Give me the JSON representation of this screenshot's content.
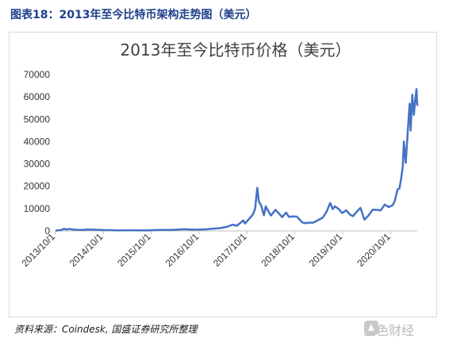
{
  "figure_caption": "图表18：2013年至今比特币架构走势图（美元）",
  "source_note": "资料来源：Coindesk, 国盛证券研究所整理",
  "watermark": {
    "text": "金色财经",
    "icon": "jinse-logo-icon"
  },
  "colors": {
    "series": "#4472c4",
    "caption": "#1f3f8a",
    "frame": "#d9d9d9"
  },
  "chart_data": {
    "type": "line",
    "title": "2013年至今比特币价格（美元）",
    "xlabel": "",
    "ylabel": "",
    "ylim": [
      0,
      70000
    ],
    "yticks": [
      0,
      10000,
      20000,
      30000,
      40000,
      50000,
      60000,
      70000
    ],
    "ytick_labels": [
      "0",
      "10000",
      "20000",
      "30000",
      "40000",
      "50000",
      "60000",
      "70000"
    ],
    "xlim": [
      "2013-10-01",
      "2021-04-20"
    ],
    "xticks": [
      "2013-10-01",
      "2014-10-01",
      "2015-10-01",
      "2016-10-01",
      "2017-10-01",
      "2018-10-01",
      "2019-10-01",
      "2020-10-01"
    ],
    "xtick_labels": [
      "2013/10/1",
      "2014/10/1",
      "2015/10/1",
      "2016/10/1",
      "2017/10/1",
      "2018/10/1",
      "2019/10/1",
      "2020/10/1"
    ],
    "grid": false,
    "legend": "none",
    "series": [
      {
        "x": [
          "2013-10-01",
          "2013-11-15",
          "2013-12-05",
          "2013-12-20",
          "2014-01-15",
          "2014-02-15",
          "2014-03-15",
          "2014-05-01",
          "2014-06-01",
          "2014-08-01",
          "2014-10-01",
          "2014-12-01",
          "2015-01-15",
          "2015-03-01",
          "2015-06-01",
          "2015-09-01",
          "2015-11-05",
          "2016-01-01",
          "2016-03-01",
          "2016-06-18",
          "2016-08-01",
          "2016-10-01",
          "2016-12-01",
          "2017-01-05",
          "2017-03-01",
          "2017-05-01",
          "2017-06-10",
          "2017-07-15",
          "2017-09-01",
          "2017-09-15",
          "2017-10-01",
          "2017-11-01",
          "2017-11-15",
          "2017-12-01",
          "2017-12-17",
          "2017-12-30",
          "2018-01-15",
          "2018-02-06",
          "2018-02-20",
          "2018-03-05",
          "2018-04-01",
          "2018-05-05",
          "2018-06-25",
          "2018-07-25",
          "2018-08-15",
          "2018-09-15",
          "2018-10-15",
          "2018-11-25",
          "2018-12-15",
          "2019-01-15",
          "2019-02-15",
          "2019-04-01",
          "2019-05-01",
          "2019-05-30",
          "2019-06-26",
          "2019-07-15",
          "2019-08-01",
          "2019-09-01",
          "2019-09-25",
          "2019-10-26",
          "2019-11-25",
          "2019-12-17",
          "2020-01-15",
          "2020-02-12",
          "2020-03-13",
          "2020-04-15",
          "2020-05-15",
          "2020-06-15",
          "2020-07-15",
          "2020-08-15",
          "2020-09-15",
          "2020-10-15",
          "2020-11-01",
          "2020-11-20",
          "2020-12-05",
          "2020-12-17",
          "2020-12-31",
          "2021-01-08",
          "2021-01-22",
          "2021-02-08",
          "2021-02-21",
          "2021-02-28",
          "2021-03-13",
          "2021-03-25",
          "2021-04-05",
          "2021-04-14",
          "2021-04-20"
        ],
        "values": [
          130,
          400,
          1000,
          650,
          850,
          600,
          500,
          450,
          620,
          550,
          380,
          360,
          230,
          260,
          240,
          230,
          380,
          430,
          420,
          750,
          580,
          620,
          750,
          1000,
          1200,
          1800,
          2800,
          2300,
          4700,
          3300,
          4400,
          6500,
          7500,
          10000,
          19300,
          13000,
          11500,
          7000,
          11000,
          9500,
          6900,
          9500,
          6200,
          8200,
          6300,
          6500,
          6400,
          3800,
          3500,
          3700,
          3700,
          5000,
          6000,
          8700,
          12500,
          9800,
          11000,
          9700,
          8000,
          9200,
          7300,
          6600,
          8600,
          10300,
          5000,
          7000,
          9500,
          9400,
          9200,
          11800,
          10700,
          11500,
          13700,
          18500,
          19000,
          23000,
          29000,
          40000,
          30500,
          46000,
          57000,
          45000,
          61000,
          52000,
          59000,
          63500,
          56000
        ]
      }
    ]
  }
}
